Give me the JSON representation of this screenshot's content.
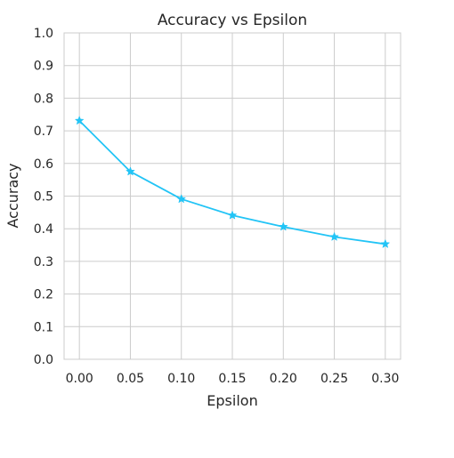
{
  "chart_data": {
    "type": "line",
    "title": "Accuracy vs Epsilon",
    "xlabel": "Epsilon",
    "ylabel": "Accuracy",
    "x": [
      0.0,
      0.05,
      0.1,
      0.15,
      0.2,
      0.25,
      0.3
    ],
    "series": [
      {
        "values": [
          0.731,
          0.575,
          0.491,
          0.441,
          0.406,
          0.375,
          0.353
        ],
        "color": "#22c4f6",
        "marker": "star"
      }
    ],
    "x_ticks": [
      "0.00",
      "0.05",
      "0.10",
      "0.15",
      "0.20",
      "0.25",
      "0.30"
    ],
    "y_ticks": [
      "0.0",
      "0.1",
      "0.2",
      "0.3",
      "0.4",
      "0.5",
      "0.6",
      "0.7",
      "0.8",
      "0.9",
      "1.0"
    ],
    "xlim": [
      -0.015,
      0.315
    ],
    "ylim": [
      0.0,
      1.0
    ],
    "grid": true
  }
}
